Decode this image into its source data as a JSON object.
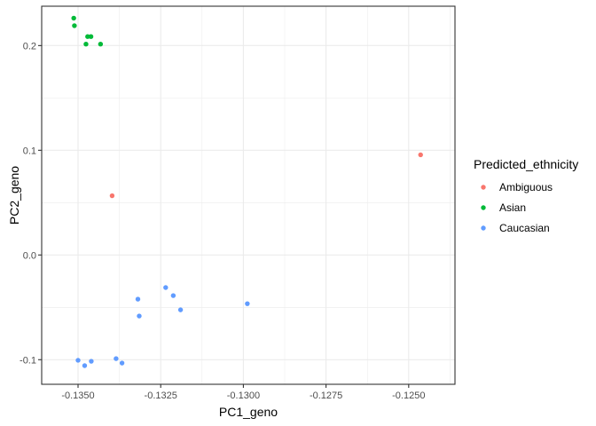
{
  "chart_data": {
    "type": "scatter",
    "xlabel": "PC1_geno",
    "ylabel": "PC2_geno",
    "xlim": [
      -0.1361,
      -0.1236
    ],
    "ylim": [
      -0.1235,
      0.2376
    ],
    "x_ticks": [
      -0.135,
      -0.1325,
      -0.13,
      -0.1275,
      -0.125
    ],
    "x_tick_labels": [
      "-0.1350",
      "-0.1325",
      "-0.1300",
      "-0.1275",
      "-0.1250"
    ],
    "y_ticks": [
      -0.1,
      0.0,
      0.1,
      0.2
    ],
    "y_tick_labels": [
      "-0.1",
      "0.0",
      "0.1",
      "0.2"
    ],
    "grid": true,
    "legend": {
      "title": "Predicted_ethnicity",
      "placement": "right"
    },
    "series": [
      {
        "name": "Ambiguous",
        "color": "#F8766D",
        "points": [
          {
            "x": -0.13397,
            "y": 0.0566
          },
          {
            "x": -0.12464,
            "y": 0.0957
          }
        ]
      },
      {
        "name": "Asian",
        "color": "#00BA38",
        "points": [
          {
            "x": -0.13513,
            "y": 0.2262
          },
          {
            "x": -0.13511,
            "y": 0.219
          },
          {
            "x": -0.13471,
            "y": 0.2086
          },
          {
            "x": -0.13461,
            "y": 0.2086
          },
          {
            "x": -0.13476,
            "y": 0.2014
          },
          {
            "x": -0.13432,
            "y": 0.2014
          }
        ]
      },
      {
        "name": "Caucasian",
        "color": "#619CFF",
        "points": [
          {
            "x": -0.13235,
            "y": -0.0311
          },
          {
            "x": -0.13212,
            "y": -0.0388
          },
          {
            "x": -0.1319,
            "y": -0.0524
          },
          {
            "x": -0.13319,
            "y": -0.0422
          },
          {
            "x": -0.13315,
            "y": -0.0583
          },
          {
            "x": -0.12988,
            "y": -0.0465
          },
          {
            "x": -0.135,
            "y": -0.1006
          },
          {
            "x": -0.1348,
            "y": -0.1057
          },
          {
            "x": -0.1346,
            "y": -0.1015
          },
          {
            "x": -0.13385,
            "y": -0.099
          },
          {
            "x": -0.13367,
            "y": -0.1032
          }
        ]
      }
    ]
  }
}
